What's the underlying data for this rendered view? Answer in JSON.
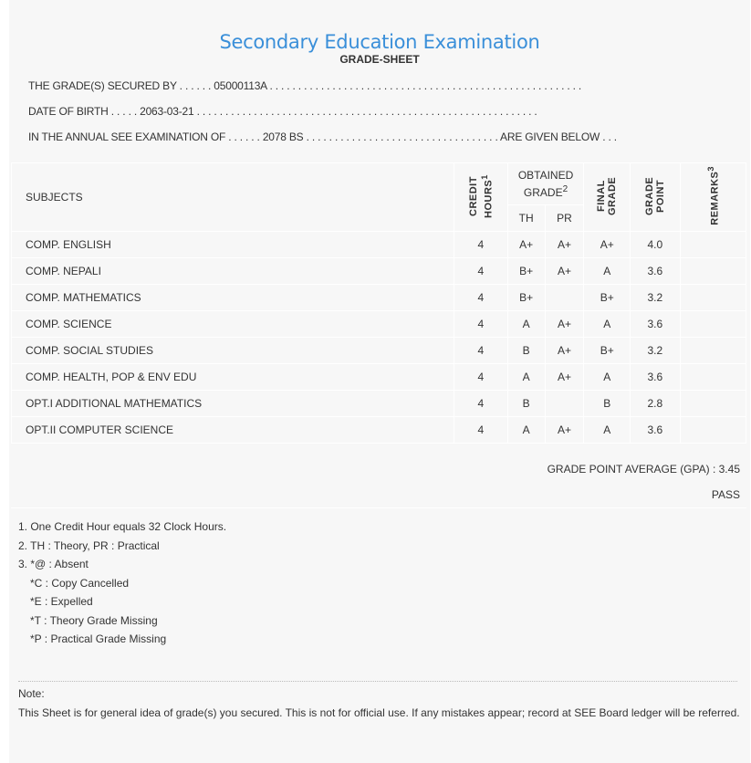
{
  "header": {
    "title": "Secondary Education Examination",
    "subtitle": "GRADE-SHEET"
  },
  "info": {
    "secured_by": "THE GRADE(S) SECURED BY . . . . . . 05000113A . . . . . . . . . . . . . . . . . . . . . . . . . . . . . . . . . . . . . . . . . . . . . . . . . . . . . . .",
    "dob": "DATE OF BIRTH . . . . . 2063-03-21 . . . . . . . . . . . . . . . . . . . . . . . . . . . . . . . . . . . . . . . . . . . . . . . . . . . . . . . . . . . .",
    "exam": "IN THE ANNUAL SEE EXAMINATION OF . . . . . . 2078 BS . . . . . . . . . . . . . . . . . . . . . . . . . . . . . . . . . . ARE GIVEN BELOW . . ."
  },
  "table": {
    "headers": {
      "subjects": "SUBJECTS",
      "credit_hours": "CREDIT HOURS",
      "credit_sup": "1",
      "obtained_grade": "OBTAINED GRADE",
      "obtained_sup": "2",
      "th": "TH",
      "pr": "PR",
      "final_grade": "FINAL GRADE",
      "grade_point": "GRADE POINT",
      "remarks": "REMARKS",
      "remarks_sup": "3"
    },
    "rows": [
      {
        "subject": "COMP. ENGLISH",
        "credit": "4",
        "th": "A+",
        "pr": "A+",
        "final": "A+",
        "gp": "4.0",
        "remarks": ""
      },
      {
        "subject": "COMP. NEPALI",
        "credit": "4",
        "th": "B+",
        "pr": "A+",
        "final": "A",
        "gp": "3.6",
        "remarks": ""
      },
      {
        "subject": "COMP. MATHEMATICS",
        "credit": "4",
        "th": "B+",
        "pr": "",
        "final": "B+",
        "gp": "3.2",
        "remarks": ""
      },
      {
        "subject": "COMP. SCIENCE",
        "credit": "4",
        "th": "A",
        "pr": "A+",
        "final": "A",
        "gp": "3.6",
        "remarks": ""
      },
      {
        "subject": "COMP. SOCIAL STUDIES",
        "credit": "4",
        "th": "B",
        "pr": "A+",
        "final": "B+",
        "gp": "3.2",
        "remarks": ""
      },
      {
        "subject": "COMP. HEALTH, POP & ENV EDU",
        "credit": "4",
        "th": "A",
        "pr": "A+",
        "final": "A",
        "gp": "3.6",
        "remarks": ""
      },
      {
        "subject": "OPT.I ADDITIONAL MATHEMATICS",
        "credit": "4",
        "th": "B",
        "pr": "",
        "final": "B",
        "gp": "2.8",
        "remarks": ""
      },
      {
        "subject": "OPT.II COMPUTER SCIENCE",
        "credit": "4",
        "th": "A",
        "pr": "A+",
        "final": "A",
        "gp": "3.6",
        "remarks": ""
      }
    ]
  },
  "summary": {
    "gpa": "GRADE POINT AVERAGE (GPA) : 3.45",
    "result": "PASS"
  },
  "legend": [
    "1. One Credit Hour equals 32 Clock Hours.",
    "2. TH : Theory, PR : Practical",
    "3. *@ : Absent",
    "*C : Copy Cancelled",
    "*E : Expelled",
    "*T : Theory Grade Missing",
    "*P : Practical Grade Missing"
  ],
  "note": {
    "label": "Note:",
    "text": "This Sheet is for general idea of grade(s) you secured. This is not for official use. If any mistakes appear; record at SEE Board ledger will be referred."
  },
  "colors": {
    "title": "#3a8fd9",
    "background": "#f7f7f7"
  }
}
